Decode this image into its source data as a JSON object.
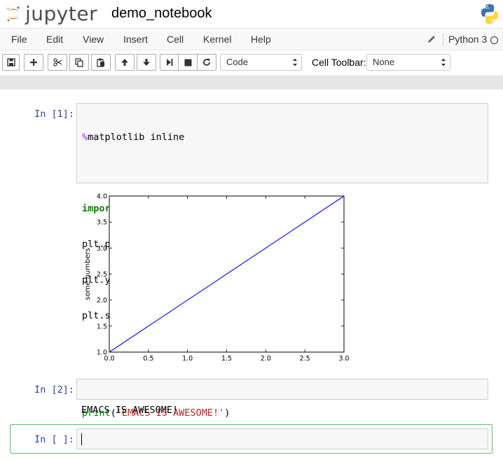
{
  "header": {
    "logo_text": "jupyter",
    "notebook_name": "demo_notebook"
  },
  "menubar": {
    "items": [
      "File",
      "Edit",
      "View",
      "Insert",
      "Cell",
      "Kernel",
      "Help"
    ],
    "kernel_name": "Python 3"
  },
  "toolbar": {
    "cell_type": "Code",
    "cell_toolbar_label": "Cell Toolbar:",
    "cell_toolbar_value": "None"
  },
  "cells": [
    {
      "prompt": "In [1]:",
      "code_lines": [
        "%matplotlib inline",
        "",
        "import matplotlib.pyplot as plt",
        "plt.plot([1,2,3,4])",
        "plt.ylabel('some numbers')",
        "plt.show()"
      ]
    },
    {
      "prompt": "In [2]:",
      "code_lines": [
        "print('EMACS IS AWESOME!')"
      ],
      "output": "EMACS IS AWESOME!"
    },
    {
      "prompt": "In [ ]:",
      "code_lines": [
        ""
      ]
    }
  ],
  "chart_data": {
    "type": "line",
    "x": [
      0,
      1,
      2,
      3
    ],
    "series": [
      {
        "values": [
          1,
          2,
          3,
          4
        ],
        "color": "#0000ff"
      }
    ],
    "ylabel": "some numbers",
    "xlim": [
      0.0,
      3.0
    ],
    "ylim": [
      1.0,
      4.0
    ],
    "xticks": [
      "0.0",
      "0.5",
      "1.0",
      "1.5",
      "2.0",
      "2.5",
      "3.0"
    ],
    "yticks": [
      "1.0",
      "1.5",
      "2.0",
      "2.5",
      "3.0",
      "3.5",
      "4.0"
    ],
    "grid": false
  }
}
